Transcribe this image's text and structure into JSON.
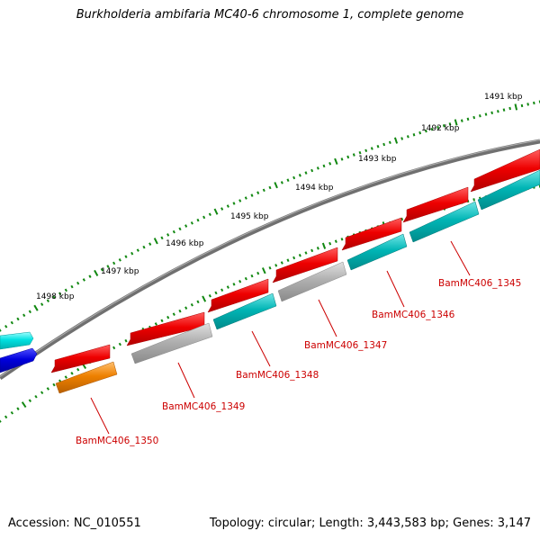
{
  "title": "Burkholderia ambifaria MC40-6 chromosome 1, complete genome",
  "accession": "Accession: NC_010551",
  "summary": "Topology: circular; Length: 3,443,583 bp; Genes: 3,147",
  "scale_labels": [
    "1491 kbp",
    "1492 kbp",
    "1493 kbp",
    "1494 kbp",
    "1495 kbp",
    "1496 kbp",
    "1497 kbp",
    "1498 kbp"
  ],
  "gene_labels": [
    "BamMC406_1345",
    "BamMC406_1346",
    "BamMC406_1347",
    "BamMC406_1348",
    "BamMC406_1349",
    "BamMC406_1350"
  ],
  "colors": {
    "red_gene": "#ee0000",
    "cyan_gene": "#00b5b5",
    "gray_gene": "#b0b0b0",
    "orange_gene": "#ee8000",
    "blue_gene": "#0000dd",
    "bright_cyan_gene": "#00e0e0",
    "backbone": "#707070",
    "tick": "#118811",
    "label": "#cc0000"
  }
}
